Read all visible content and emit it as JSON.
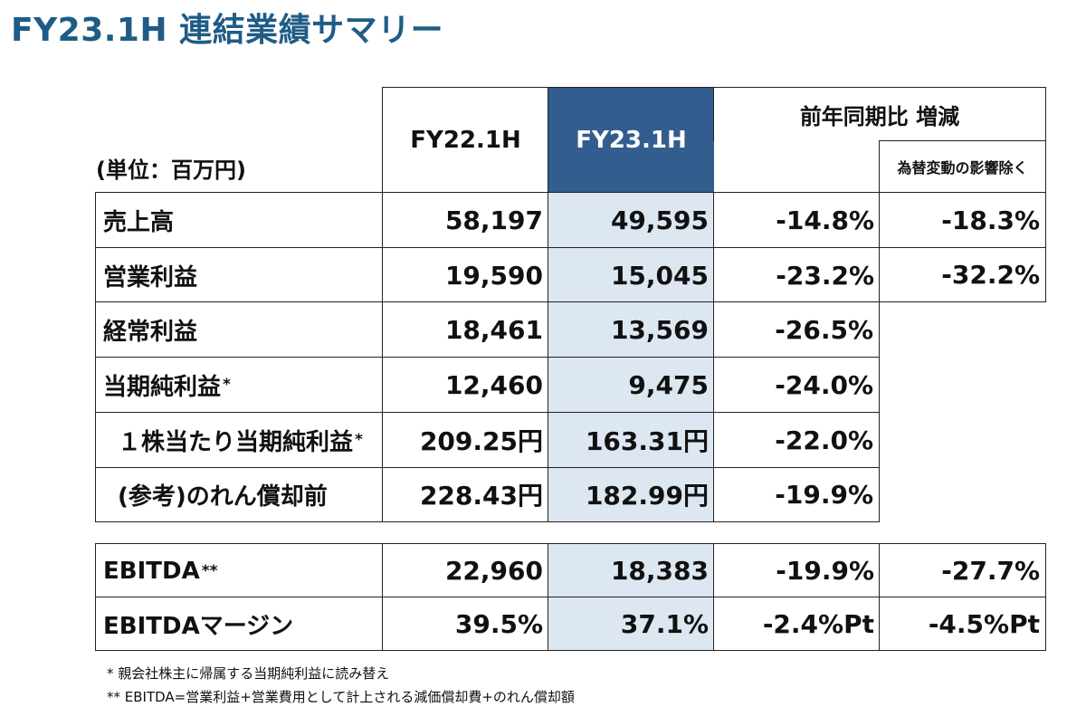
{
  "title": "FY23.1H 連結業績サマリー",
  "unit_label": "(単位：百万円)",
  "headers": {
    "prev": "FY22.1H",
    "curr": "FY23.1H",
    "yoy": "前年同期比 増減",
    "fx": "為替変動の影響除く"
  },
  "rows": [
    {
      "label": "売上高",
      "mark": "",
      "prev": "58,197",
      "curr": "49,595",
      "yoy": "-14.8%",
      "fx": "-18.3%"
    },
    {
      "label": "営業利益",
      "mark": "",
      "prev": "19,590",
      "curr": "15,045",
      "yoy": "-23.2%",
      "fx": "-32.2%"
    },
    {
      "label": "経常利益",
      "mark": "",
      "prev": "18,461",
      "curr": "13,569",
      "yoy": "-26.5%"
    },
    {
      "label": "当期純利益",
      "mark": "*",
      "prev": "12,460",
      "curr": "9,475",
      "yoy": "-24.0%"
    },
    {
      "label": "１株当たり当期純利益",
      "mark": "*",
      "prev": "209.25円",
      "curr": "163.31円",
      "yoy": "-22.0%"
    },
    {
      "label": "(参考)のれん償却前",
      "mark": "",
      "prev": "228.43円",
      "curr": "182.99円",
      "yoy": "-19.9%"
    }
  ],
  "ebitda_rows": [
    {
      "label": "EBITDA",
      "mark": "**",
      "prev": "22,960",
      "curr": "18,383",
      "yoy": "-19.9%",
      "fx": "-27.7%"
    },
    {
      "label": "EBITDAマージン",
      "mark": "",
      "prev": "39.5%",
      "curr": "37.1%",
      "yoy": "-2.4%Pt",
      "fx": "-4.5%Pt"
    }
  ],
  "footnotes": [
    "*  親会社株主に帰属する当期純利益に読み替え",
    "** EBITDA=営業利益+営業費用として計上される減価償却費+のれん償却額"
  ]
}
